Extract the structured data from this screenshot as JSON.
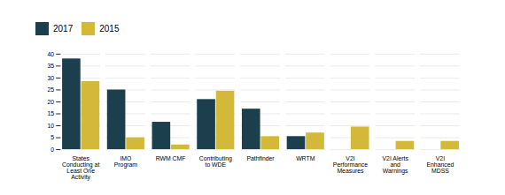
{
  "chart_data": {
    "type": "bar",
    "categories": [
      "States\nConducting at\nLeast One\nActivity",
      "IMO\nProgram",
      "RWM CMF",
      "Contributing\nto WDE",
      "Pathfinder",
      "WRTM",
      "V2I\nPerformance\nMeasures",
      "V2I Alerts\nand\nWarnings",
      "V2I\nEnhanced\nMDSS"
    ],
    "series": [
      {
        "name": "2017",
        "color": "#1c3f4e",
        "values": [
          38,
          25,
          11.5,
          21,
          17,
          5.5,
          0,
          0,
          0
        ]
      },
      {
        "name": "2015",
        "color": "#d4b83a",
        "values": [
          28.5,
          5,
          2,
          24.5,
          5.5,
          7,
          9.5,
          3.5,
          3.5
        ]
      }
    ],
    "ylim": [
      0,
      40
    ],
    "yticks": [
      0,
      5,
      10,
      15,
      20,
      25,
      30,
      35,
      40
    ],
    "grid": true,
    "legend": "top"
  }
}
